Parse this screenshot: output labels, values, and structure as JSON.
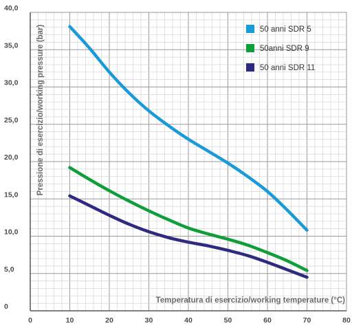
{
  "chart_data": {
    "type": "line",
    "xlabel": "Temperatura di esercizio/working temperature (°C)",
    "ylabel": "Pressione di esercizio/working pressure (bar)",
    "xlim": [
      0,
      80
    ],
    "ylim": [
      0,
      40
    ],
    "x_ticks": [
      "0",
      "10",
      "20",
      "30",
      "40",
      "50",
      "60",
      "70",
      "80"
    ],
    "y_ticks": [
      "0",
      "5,0",
      "10,0",
      "15,0",
      "20,0",
      "25,0",
      "30,0",
      "35,0",
      "40,0"
    ],
    "grid": true,
    "legend_position": "top-right",
    "series": [
      {
        "name": "50 anni SDR 5",
        "color": "#1a9ad6",
        "x": [
          10,
          15,
          20,
          25,
          30,
          35,
          40,
          45,
          50,
          55,
          60,
          65,
          70
        ],
        "y": [
          38.1,
          35.2,
          32.0,
          29.2,
          26.8,
          24.8,
          23.0,
          21.4,
          19.8,
          18.0,
          16.0,
          13.5,
          10.8
        ]
      },
      {
        "name": "50anni SDR 9",
        "color": "#0f9e3a",
        "x": [
          10,
          15,
          20,
          25,
          30,
          35,
          40,
          45,
          50,
          55,
          60,
          65,
          70
        ],
        "y": [
          19.2,
          17.6,
          16.1,
          14.7,
          13.4,
          12.2,
          11.1,
          10.3,
          9.6,
          8.8,
          7.8,
          6.7,
          5.4
        ]
      },
      {
        "name": "50 anni SDR 11",
        "color": "#2e2a82",
        "x": [
          10,
          15,
          20,
          25,
          30,
          35,
          40,
          45,
          50,
          55,
          60,
          65,
          70
        ],
        "y": [
          15.4,
          14.1,
          12.8,
          11.6,
          10.6,
          9.8,
          9.2,
          8.7,
          8.1,
          7.4,
          6.5,
          5.5,
          4.5
        ]
      }
    ]
  }
}
